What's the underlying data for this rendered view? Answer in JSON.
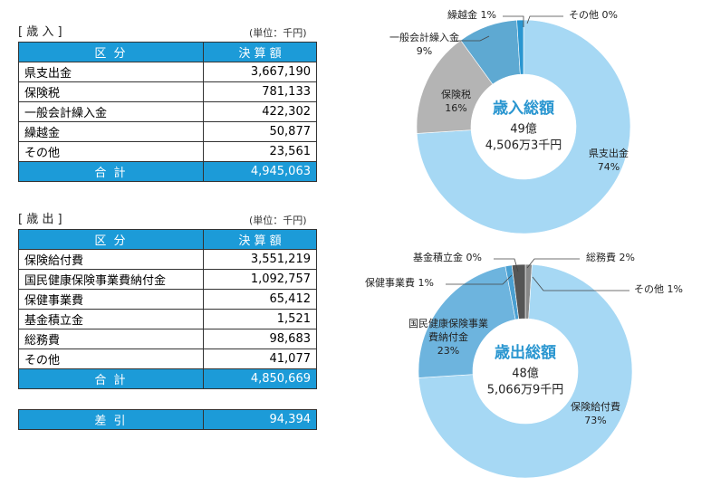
{
  "revenue": {
    "title": "[ 歳 入 ]",
    "unit": "(単位：千円)",
    "header": [
      "区 分",
      "決 算 額"
    ],
    "rows": [
      [
        "県支出金",
        "3,667,190"
      ],
      [
        "保険税",
        "781,133"
      ],
      [
        "一般会計繰入金",
        "422,302"
      ],
      [
        "繰越金",
        "50,877"
      ],
      [
        "その他",
        "23,561"
      ]
    ],
    "total": [
      "合 計",
      "4,945,063"
    ]
  },
  "expenditure": {
    "title": "[ 歳 出 ]",
    "unit": "(単位：千円)",
    "header": [
      "区 分",
      "決 算 額"
    ],
    "rows": [
      [
        "保険給付費",
        "3,551,219"
      ],
      [
        "国民健康保険事業費納付金",
        "1,092,757"
      ],
      [
        "保健事業費",
        "65,412"
      ],
      [
        "基金積立金",
        "1,521"
      ],
      [
        "総務費",
        "98,683"
      ],
      [
        "その他",
        "41,077"
      ]
    ],
    "total": [
      "合 計",
      "4,850,669"
    ]
  },
  "balance": [
    "差 引",
    "94,394"
  ],
  "chart_data": [
    {
      "type": "pie",
      "title": "歳入総額",
      "total_label": [
        "49億",
        "4,506万3千円"
      ],
      "categories": [
        "その他",
        "県支出金",
        "保険税",
        "一般会計繰入金",
        "繰越金"
      ],
      "values": [
        0,
        74,
        16,
        9,
        1
      ],
      "value_labels": [
        "0%",
        "74%",
        "16%",
        "9%",
        "1%"
      ],
      "colors": [
        "#2a96d0",
        "#a6d8f4",
        "#b4b4b4",
        "#5ea9d2",
        "#2a96d0"
      ]
    },
    {
      "type": "pie",
      "title": "歳出総額",
      "total_label": [
        "48億",
        "5,066万9千円"
      ],
      "categories": [
        "その他",
        "保険給付費",
        "国民健康保険事業費納付金",
        "保健事業費",
        "基金積立金",
        "総務費"
      ],
      "values": [
        1,
        73,
        23,
        1,
        0,
        2
      ],
      "value_labels": [
        "1%",
        "73%",
        "23%",
        "1%",
        "0%",
        "2%"
      ],
      "colors": [
        "#888888",
        "#a6d8f4",
        "#6db4de",
        "#4aa0d2",
        "#2a86c0",
        "#555555"
      ]
    }
  ]
}
